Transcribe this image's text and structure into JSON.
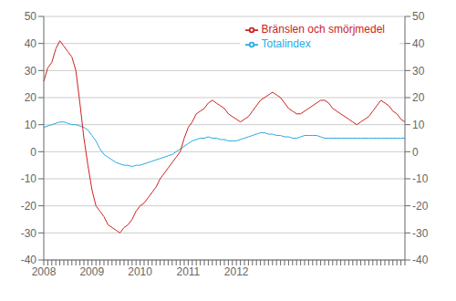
{
  "chart_data": {
    "type": "line",
    "categories": [
      "2008",
      null,
      null,
      null,
      null,
      null,
      null,
      null,
      null,
      null,
      null,
      null,
      "2009",
      null,
      null,
      null,
      null,
      null,
      null,
      null,
      null,
      null,
      null,
      null,
      "2010",
      null,
      null,
      null,
      null,
      null,
      null,
      null,
      null,
      null,
      null,
      null,
      "2011",
      null,
      null,
      null,
      null,
      null,
      null,
      null,
      null,
      null,
      null,
      null,
      "2012",
      null,
      null,
      null,
      null,
      null,
      null,
      null,
      null,
      null,
      null,
      null,
      null,
      null,
      null,
      null,
      null,
      null,
      null,
      null,
      null,
      null,
      null,
      null,
      null,
      null,
      null,
      null,
      null,
      null,
      null,
      null,
      null,
      null,
      null,
      null,
      null,
      null,
      null,
      null,
      null,
      null,
      null
    ],
    "series": [
      {
        "name": "Totalindex",
        "color": "#29ABE2",
        "values": [
          9,
          9.5,
          10,
          10.5,
          11,
          11,
          10.5,
          10,
          10,
          9.5,
          9,
          8,
          6,
          4,
          1,
          -1,
          -2,
          -3,
          -4,
          -4.5,
          -5,
          -5,
          -5.5,
          -5,
          -5,
          -4.5,
          -4,
          -3.5,
          -3,
          -2.5,
          -2,
          -1.5,
          -1,
          0,
          1,
          2,
          3,
          4,
          4.5,
          5,
          5,
          5.5,
          5,
          5,
          4.5,
          4.5,
          4,
          4,
          4,
          4.5,
          5,
          5.5,
          6,
          6.5,
          7,
          7,
          6.5,
          6.5,
          6,
          6,
          5.5,
          5.5,
          5,
          5,
          5.5,
          6,
          6,
          6,
          6,
          5.5,
          5,
          5,
          5,
          5,
          5,
          5,
          5,
          5,
          5,
          5,
          5,
          5,
          5,
          5,
          5,
          5,
          5,
          5,
          5,
          5,
          5
        ]
      },
      {
        "name": "Bränslen och smörjmedel",
        "color": "#CC2222",
        "values": [
          26,
          31,
          33,
          38,
          41,
          39,
          37,
          35,
          30,
          18,
          5,
          -5,
          -14,
          -20,
          -22,
          -24,
          -27,
          -28,
          -29,
          -30,
          -28,
          -27,
          -25,
          -22,
          -20,
          -19,
          -17,
          -15,
          -13,
          -10,
          -8,
          -6,
          -4,
          -2,
          0,
          5,
          9,
          11,
          14,
          15,
          16,
          18,
          19,
          18,
          17,
          16,
          14,
          13,
          12,
          11,
          12,
          13,
          15,
          17,
          19,
          20,
          21,
          22,
          21,
          20,
          18,
          16,
          15,
          14,
          14,
          15,
          16,
          17,
          18,
          19,
          19,
          18,
          16,
          15,
          14,
          13,
          12,
          11,
          10,
          11,
          12,
          13,
          15,
          17,
          19,
          18,
          17,
          15,
          14,
          12,
          11
        ]
      }
    ],
    "ylim": [
      -40,
      50
    ],
    "yticks": [
      -40,
      -30,
      -20,
      -10,
      0,
      10,
      20,
      30,
      40,
      50
    ],
    "y2lim": [
      -40,
      50
    ],
    "y2ticks": [
      -40,
      -30,
      -20,
      -10,
      0,
      10,
      20,
      30,
      40,
      50
    ],
    "grid": true,
    "legend": "upper right"
  }
}
